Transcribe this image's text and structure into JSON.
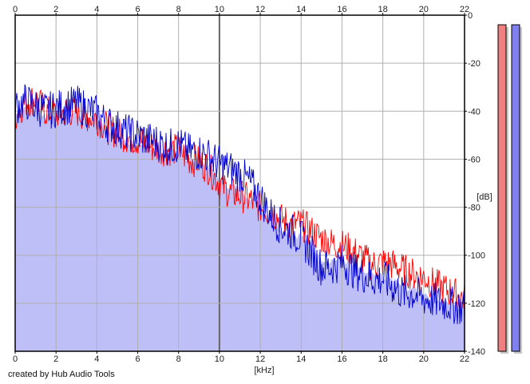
{
  "chart_data": {
    "type": "area",
    "xlabel": "[kHz]",
    "ylabel": "[dB]",
    "xlim": [
      0,
      22
    ],
    "ylim": [
      -140,
      0
    ],
    "x_ticks": [
      "0",
      "2",
      "4",
      "6",
      "8",
      "10",
      "12",
      "14",
      "16",
      "18",
      "20",
      "22"
    ],
    "y_ticks": [
      "0",
      "-20",
      "-40",
      "-60",
      "-80",
      "-100",
      "-120",
      "-140"
    ],
    "grid": true,
    "series": [
      {
        "color": "#ff0000",
        "x": [
          0,
          0.5,
          1,
          1.5,
          2,
          2.5,
          3,
          3.5,
          4,
          4.5,
          5,
          5.5,
          6,
          6.5,
          7,
          7.5,
          8,
          8.5,
          9,
          9.5,
          10,
          10.5,
          11,
          11.5,
          12,
          12.5,
          13,
          13.5,
          14,
          14.5,
          15,
          15.5,
          16,
          16.5,
          17,
          17.5,
          18,
          18.5,
          19,
          19.5,
          20,
          20.5,
          21,
          21.5,
          22
        ],
        "values": [
          -42,
          -36,
          -35,
          -40,
          -41,
          -40,
          -40,
          -42,
          -43,
          -47,
          -49,
          -51,
          -52,
          -54,
          -56,
          -56,
          -56,
          -60,
          -61,
          -64,
          -70,
          -74,
          -75,
          -77,
          -80,
          -82,
          -85,
          -87,
          -87,
          -90,
          -93,
          -95,
          -96,
          -98,
          -101,
          -104,
          -103,
          -104,
          -106,
          -108,
          -109,
          -112,
          -114,
          -116,
          -118
        ]
      },
      {
        "color": "#0000cc",
        "x": [
          0,
          0.5,
          1,
          1.5,
          2,
          2.5,
          3,
          3.5,
          4,
          4.5,
          5,
          5.5,
          6,
          6.5,
          7,
          7.5,
          8,
          8.5,
          9,
          9.5,
          10,
          10.5,
          11,
          11.5,
          12,
          12.5,
          13,
          13.5,
          14,
          14.5,
          15,
          15.5,
          16,
          16.5,
          17,
          17.5,
          18,
          18.5,
          19,
          19.5,
          20,
          20.5,
          21,
          21.5,
          22
        ],
        "values": [
          -38,
          -36,
          -38,
          -40,
          -39,
          -38,
          -37,
          -39,
          -41,
          -45,
          -47,
          -49,
          -50,
          -52,
          -53,
          -55,
          -54,
          -57,
          -57,
          -59,
          -62,
          -64,
          -66,
          -70,
          -76,
          -83,
          -88,
          -90,
          -93,
          -99,
          -105,
          -105,
          -103,
          -106,
          -108,
          -110,
          -110,
          -113,
          -116,
          -116,
          -118,
          -119,
          -120,
          -121,
          -122
        ]
      }
    ],
    "meters": [
      {
        "color": "#f08080",
        "level": -4
      },
      {
        "color": "#8080f0",
        "level": -4
      }
    ]
  },
  "footer": {
    "credit": "created by Hub Audio Tools"
  }
}
